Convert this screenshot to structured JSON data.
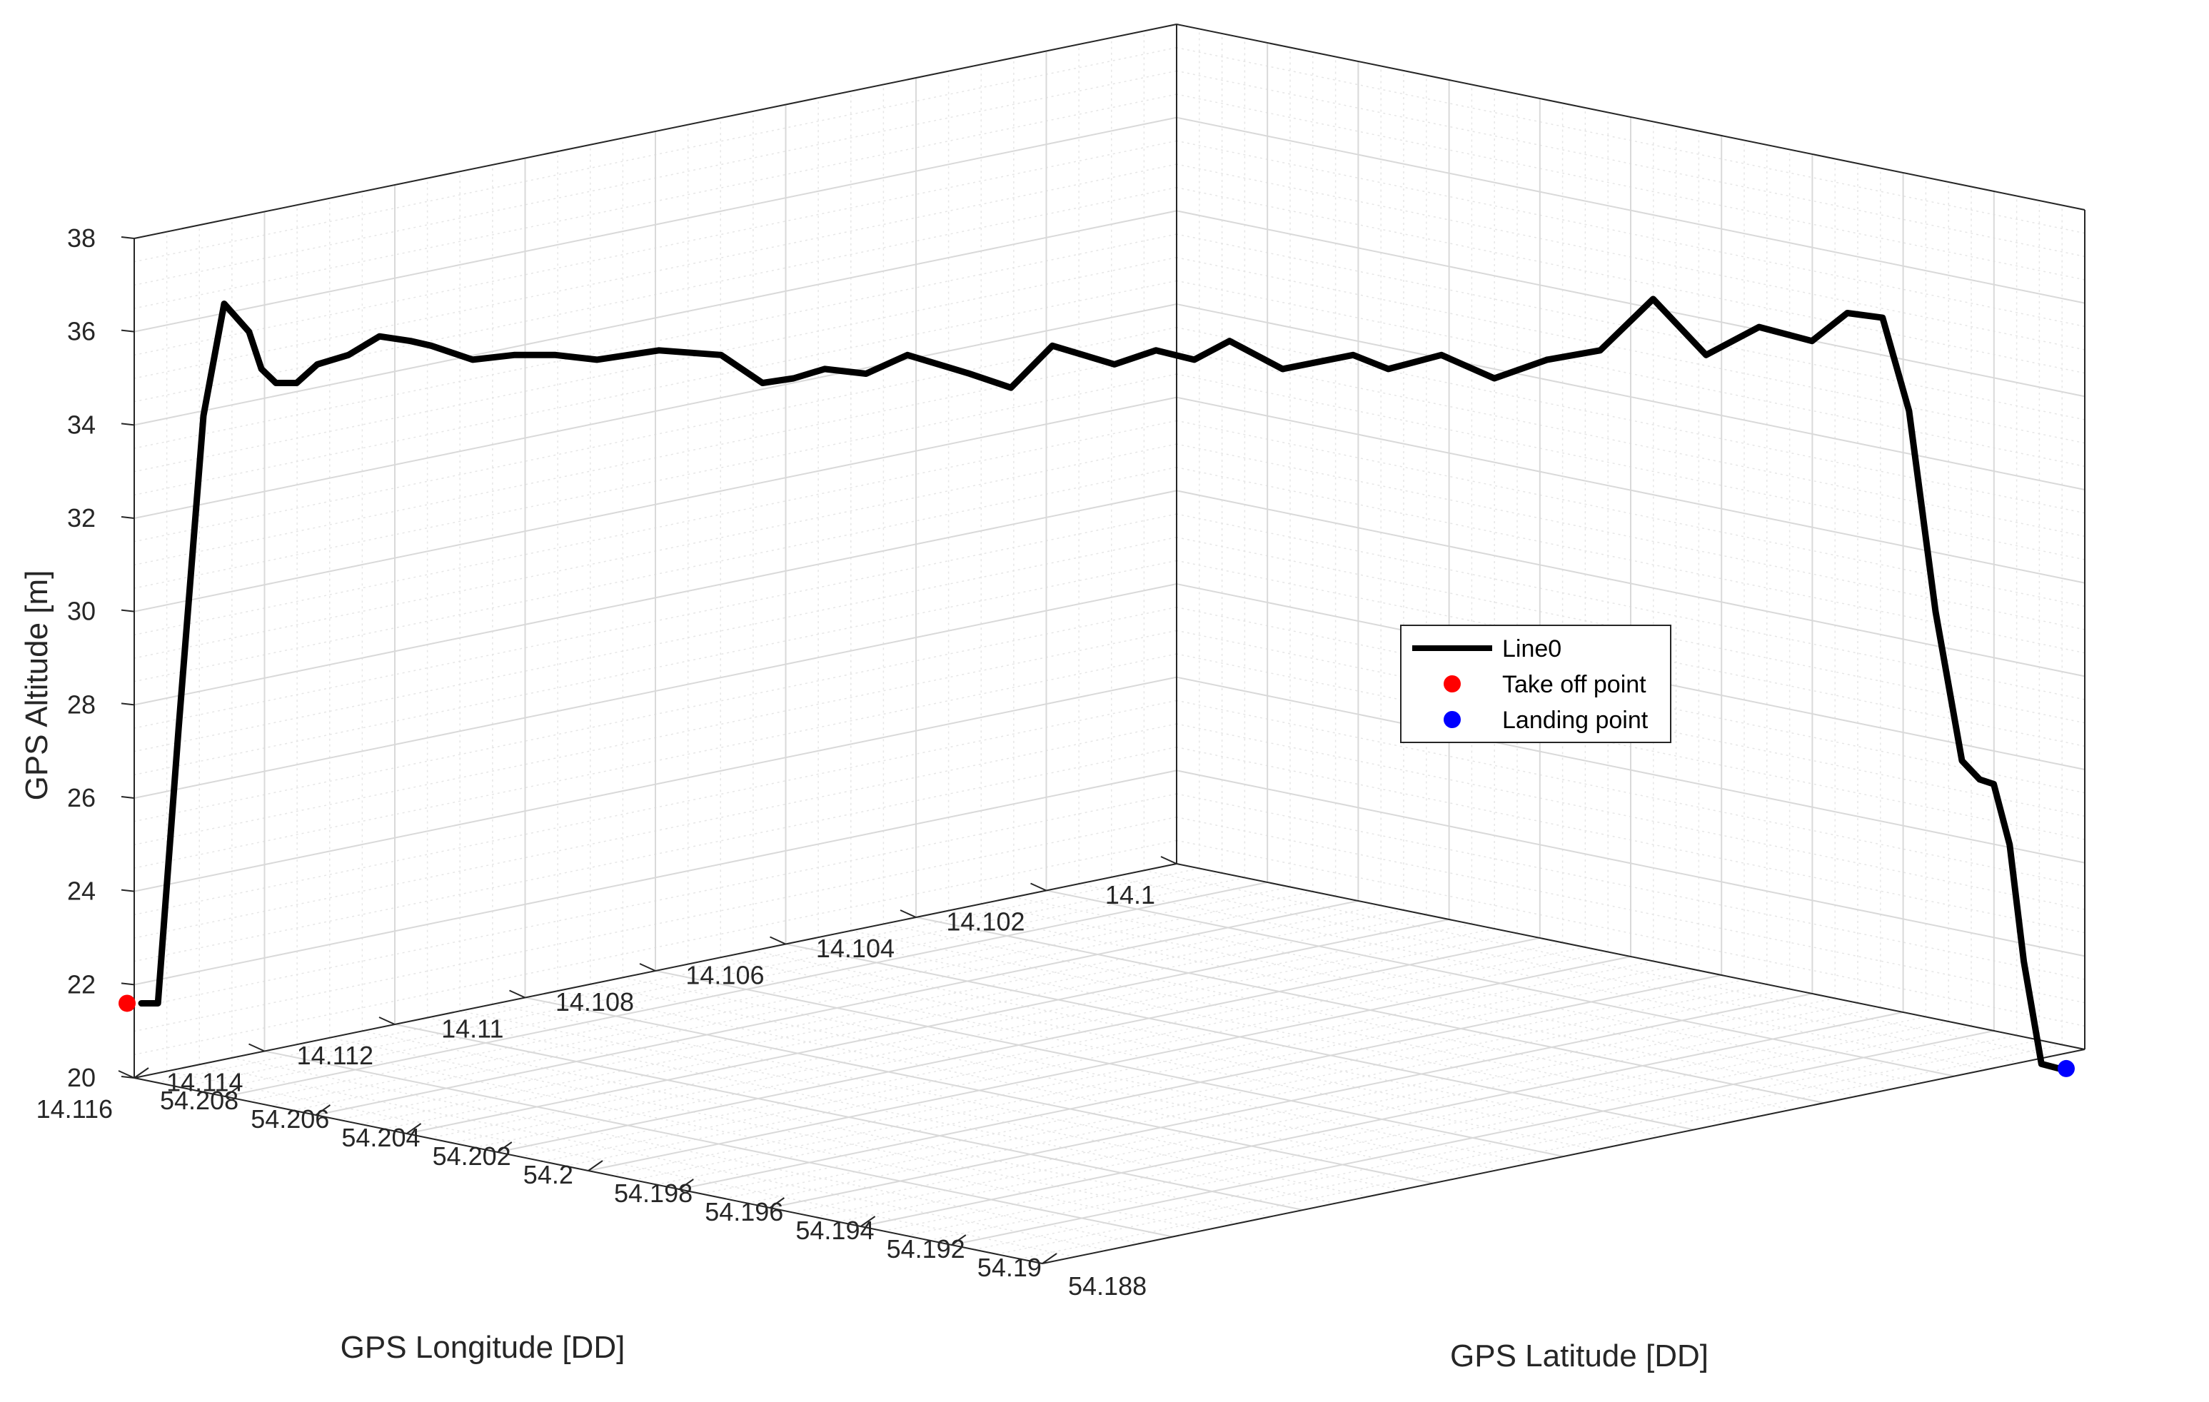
{
  "chart_data": {
    "type": "line",
    "projection": "3d",
    "title": "",
    "xlabel": "GPS Longitude [DD]",
    "ylabel": "GPS Latitude [DD]",
    "zlabel": "GPS Altitude [m]",
    "xlim": [
      14.1,
      14.116
    ],
    "ylim": [
      54.188,
      54.208
    ],
    "zlim": [
      20,
      38
    ],
    "x_ticks": [
      "14.1",
      "14.102",
      "14.104",
      "14.106",
      "14.108",
      "14.11",
      "14.112",
      "14.114",
      "14.116"
    ],
    "y_ticks": [
      "54.188",
      "54.19",
      "54.192",
      "54.194",
      "54.196",
      "54.198",
      "54.2",
      "54.202",
      "54.204",
      "54.206",
      "54.208"
    ],
    "z_ticks": [
      "20",
      "22",
      "24",
      "26",
      "28",
      "30",
      "32",
      "34",
      "36",
      "38"
    ],
    "grid": true,
    "minor_grid": true,
    "legend_position": "center-right",
    "colors": {
      "line": "#000000",
      "takeoff": "#ff0000",
      "landing": "#0000ff"
    },
    "series": [
      {
        "name": "Line0",
        "type": "line",
        "profile": {
          "s": [
            0,
            0.008,
            0.018,
            0.03,
            0.04,
            0.052,
            0.058,
            0.065,
            0.075,
            0.085,
            0.1,
            0.115,
            0.13,
            0.14,
            0.16,
            0.18,
            0.2,
            0.22,
            0.25,
            0.28,
            0.3,
            0.315,
            0.33,
            0.35,
            0.37,
            0.4,
            0.42,
            0.44,
            0.47,
            0.49,
            0.51,
            0.53,
            0.56,
            0.6,
            0.62,
            0.65,
            0.68,
            0.71,
            0.74,
            0.77,
            0.8,
            0.83,
            0.86,
            0.88,
            0.9,
            0.915,
            0.93,
            0.945,
            0.955,
            0.963,
            0.972,
            0.98,
            0.99,
            1.0
          ],
          "alt": [
            21.6,
            21.6,
            27.5,
            34.2,
            36.6,
            36.0,
            35.2,
            34.9,
            34.9,
            35.3,
            35.5,
            35.9,
            35.8,
            35.7,
            35.4,
            35.5,
            35.5,
            35.4,
            35.6,
            35.5,
            34.9,
            35.0,
            35.2,
            35.1,
            35.5,
            35.1,
            34.8,
            35.7,
            35.3,
            35.6,
            35.4,
            35.8,
            35.2,
            35.5,
            35.2,
            35.5,
            35.0,
            35.4,
            35.6,
            36.7,
            35.5,
            36.1,
            35.8,
            36.4,
            36.3,
            34.3,
            30.0,
            26.8,
            26.4,
            26.3,
            25.0,
            22.5,
            20.3,
            20.2
          ]
        }
      },
      {
        "name": "Take off point",
        "type": "point",
        "x": 14.1,
        "y": 54.2075,
        "z": 21.6
      },
      {
        "name": "Landing point",
        "type": "point",
        "x": 14.101,
        "y": 54.188,
        "z": 20.2
      }
    ]
  }
}
